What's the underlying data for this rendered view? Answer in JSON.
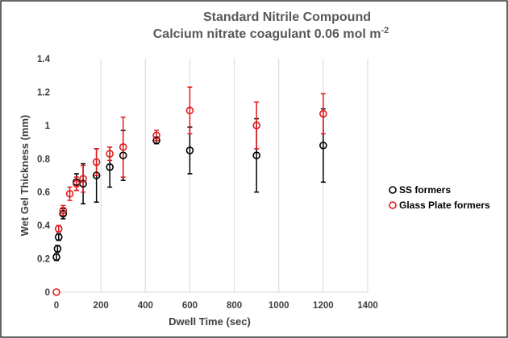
{
  "chart_data": {
    "type": "scatter",
    "title": "Standard Nitrile Compound",
    "subtitle": "Calcium nitrate coagulant 0.06 mol m",
    "subtitle_sup": "-2",
    "xlabel": "Dwell Time (sec)",
    "ylabel": "Wet Gel Thickness (mm)",
    "xlim": [
      0,
      1400
    ],
    "ylim": [
      0,
      1.4
    ],
    "x_ticks": [
      "0",
      "200",
      "400",
      "600",
      "800",
      "1000",
      "1200",
      "1400"
    ],
    "y_ticks": [
      "0",
      "0.2",
      "0.4",
      "0.6",
      "0.8",
      "1",
      "1.2",
      "1.4"
    ],
    "grid": "vertical",
    "legend_position": "right",
    "series": [
      {
        "name": "SS formers",
        "color": "#000000",
        "points": [
          {
            "x": 0,
            "y": 0.21,
            "err": 0.02
          },
          {
            "x": 5,
            "y": 0.26,
            "err": 0.02
          },
          {
            "x": 10,
            "y": 0.33,
            "err": 0.02
          },
          {
            "x": 30,
            "y": 0.47,
            "err": 0.03
          },
          {
            "x": 90,
            "y": 0.66,
            "err": 0.05
          },
          {
            "x": 120,
            "y": 0.65,
            "err": 0.12
          },
          {
            "x": 180,
            "y": 0.7,
            "err": 0.16
          },
          {
            "x": 240,
            "y": 0.75,
            "err": 0.12
          },
          {
            "x": 300,
            "y": 0.82,
            "err": 0.15
          },
          {
            "x": 450,
            "y": 0.91,
            "err": 0.02
          },
          {
            "x": 600,
            "y": 0.85,
            "err": 0.14
          },
          {
            "x": 900,
            "y": 0.82,
            "err": 0.22
          },
          {
            "x": 1200,
            "y": 0.88,
            "err": 0.22
          }
        ]
      },
      {
        "name": "Glass Plate formers",
        "color": "#e31a1c",
        "points": [
          {
            "x": 0,
            "y": 0.0,
            "err": 0.0
          },
          {
            "x": 10,
            "y": 0.38,
            "err": 0.02
          },
          {
            "x": 30,
            "y": 0.49,
            "err": 0.03
          },
          {
            "x": 60,
            "y": 0.59,
            "err": 0.04
          },
          {
            "x": 90,
            "y": 0.65,
            "err": 0.04
          },
          {
            "x": 120,
            "y": 0.68,
            "err": 0.08
          },
          {
            "x": 180,
            "y": 0.78,
            "err": 0.08
          },
          {
            "x": 240,
            "y": 0.83,
            "err": 0.04
          },
          {
            "x": 300,
            "y": 0.87,
            "err": 0.18
          },
          {
            "x": 450,
            "y": 0.94,
            "err": 0.03
          },
          {
            "x": 600,
            "y": 1.09,
            "err": 0.14
          },
          {
            "x": 900,
            "y": 1.0,
            "err": 0.14
          },
          {
            "x": 1200,
            "y": 1.07,
            "err": 0.12
          }
        ]
      }
    ]
  }
}
